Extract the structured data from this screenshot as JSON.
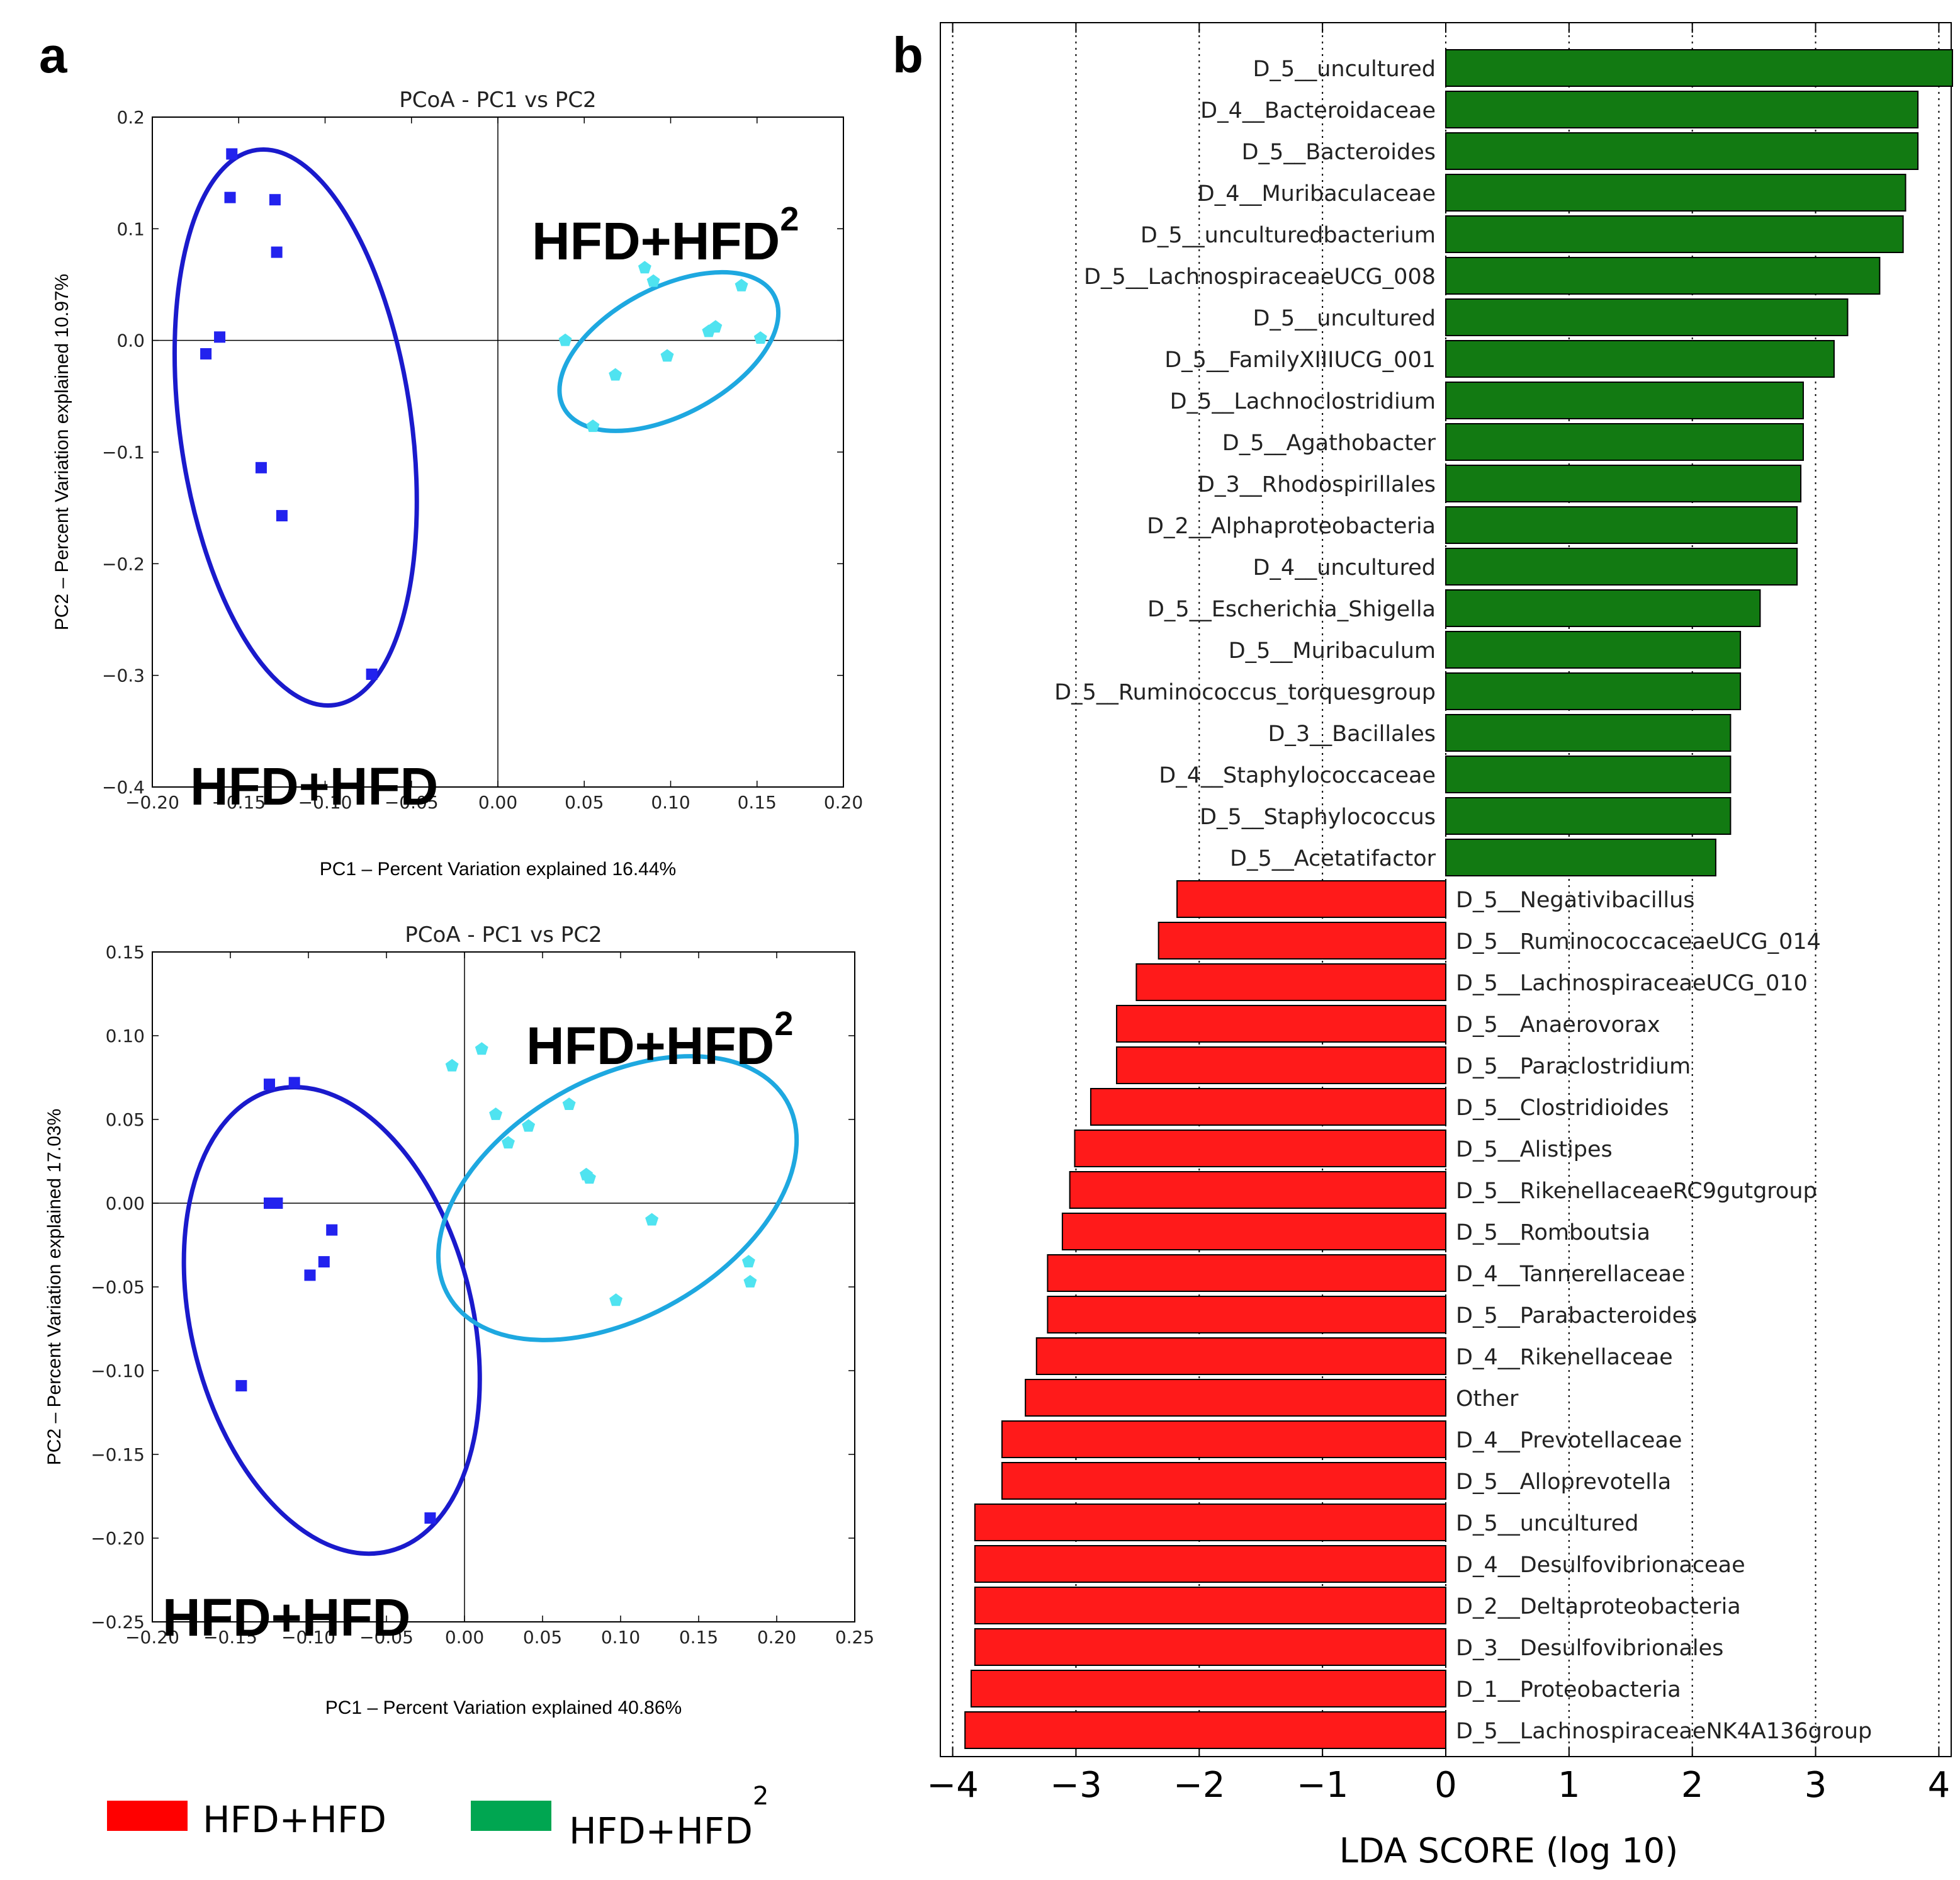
{
  "panels": {
    "a_label": "a",
    "b_label": "b"
  },
  "colors": {
    "group1_ellipse": "#1a1acc",
    "group1_points": "#2222ee",
    "group2_ellipse": "#1ea8e0",
    "group2_points": "#4fe3f0",
    "lda_positive": "#127a12",
    "lda_negative": "#ff1a1a",
    "legend_red": "#ff0000",
    "legend_green": "#00a651"
  },
  "legend": {
    "items": [
      {
        "label": "HFD+HFD",
        "sup": "",
        "color": "#ff0000"
      },
      {
        "label": "HFD+HFD",
        "sup": "2",
        "color": "#00a651"
      }
    ]
  },
  "chart_data": [
    {
      "type": "scatter",
      "title": "PCoA - PC1 vs PC2",
      "xlabel": "PC1 – Percent Variation explained 16.44%",
      "ylabel": "PC2 – Percent Variation explained 10.97%",
      "xlim": [
        -0.2,
        0.2
      ],
      "ylim": [
        -0.4,
        0.2
      ],
      "xticks": [
        -0.2,
        -0.15,
        -0.1,
        -0.05,
        0.0,
        0.05,
        0.1,
        0.15,
        0.2
      ],
      "xtick_labels": [
        "−0.20",
        "−0.15",
        "−0.10",
        "−0.05",
        "0.00",
        "0.05",
        "0.10",
        "0.15",
        "0.20"
      ],
      "yticks": [
        0.2,
        0.1,
        0.0,
        -0.1,
        -0.2,
        -0.3,
        -0.4
      ],
      "ytick_labels": [
        "0.2",
        "0.1",
        "0.0",
        "−0.1",
        "−0.2",
        "−0.3",
        "−0.4"
      ],
      "series": [
        {
          "name": "HFD+HFD",
          "marker": "square",
          "label": "HFD+HFD",
          "label_sup": "",
          "points": [
            [
              -0.154,
              0.167
            ],
            [
              -0.155,
              0.128
            ],
            [
              -0.129,
              0.126
            ],
            [
              -0.128,
              0.079
            ],
            [
              -0.161,
              0.003
            ],
            [
              -0.169,
              -0.012
            ],
            [
              -0.137,
              -0.114
            ],
            [
              -0.125,
              -0.157
            ],
            [
              -0.073,
              -0.299
            ]
          ],
          "ellipse": {
            "cx": -0.117,
            "cy": -0.078,
            "rx": 0.067,
            "ry": 0.251,
            "angle_deg": -8
          }
        },
        {
          "name": "HFD+HFD2",
          "marker": "pentagon",
          "label": "HFD+HFD",
          "label_sup": "2",
          "points": [
            [
              0.085,
              0.065
            ],
            [
              0.09,
              0.053
            ],
            [
              0.141,
              0.049
            ],
            [
              0.122,
              0.008
            ],
            [
              0.126,
              0.012
            ],
            [
              0.152,
              0.002
            ],
            [
              0.039,
              0.0
            ],
            [
              0.098,
              -0.014
            ],
            [
              0.068,
              -0.031
            ],
            [
              0.055,
              -0.077
            ]
          ],
          "ellipse": {
            "cx": 0.099,
            "cy": -0.01,
            "rx": 0.069,
            "ry": 0.057,
            "angle_deg": -28
          }
        }
      ]
    },
    {
      "type": "scatter",
      "title": "PCoA - PC1 vs PC2",
      "xlabel": "PC1 – Percent Variation explained 40.86%",
      "ylabel": "PC2 – Percent Variation explained 17.03%",
      "xlim": [
        -0.2,
        0.25
      ],
      "ylim": [
        -0.25,
        0.15
      ],
      "xticks": [
        -0.2,
        -0.15,
        -0.1,
        -0.05,
        0.0,
        0.05,
        0.1,
        0.15,
        0.2,
        0.25
      ],
      "xtick_labels": [
        "−0.20",
        "−0.15",
        "−0.10",
        "−0.05",
        "0.00",
        "0.05",
        "0.10",
        "0.15",
        "0.20",
        "0.25"
      ],
      "yticks": [
        0.15,
        0.1,
        0.05,
        0.0,
        -0.05,
        -0.1,
        -0.15,
        -0.2,
        -0.25
      ],
      "ytick_labels": [
        "0.15",
        "0.10",
        "0.05",
        "0.00",
        "−0.05",
        "−0.10",
        "−0.15",
        "−0.20",
        "−0.25"
      ],
      "series": [
        {
          "name": "HFD+HFD",
          "marker": "square",
          "label": "HFD+HFD",
          "label_sup": "",
          "points": [
            [
              -0.125,
              0.071
            ],
            [
              -0.109,
              0.072
            ],
            [
              -0.125,
              0.0
            ],
            [
              -0.12,
              0.0
            ],
            [
              -0.085,
              -0.016
            ],
            [
              -0.09,
              -0.035
            ],
            [
              -0.099,
              -0.043
            ],
            [
              -0.143,
              -0.109
            ],
            [
              -0.022,
              -0.188
            ]
          ],
          "ellipse": {
            "cx": -0.085,
            "cy": -0.07,
            "rx": 0.09,
            "ry": 0.142,
            "angle_deg": -14
          }
        },
        {
          "name": "HFD+HFD2",
          "marker": "pentagon",
          "label": "HFD+HFD",
          "label_sup": "2",
          "points": [
            [
              -0.008,
              0.082
            ],
            [
              0.011,
              0.092
            ],
            [
              0.02,
              0.053
            ],
            [
              0.028,
              0.036
            ],
            [
              0.041,
              0.046
            ],
            [
              0.067,
              0.059
            ],
            [
              0.078,
              0.017
            ],
            [
              0.08,
              0.015
            ],
            [
              0.12,
              -0.01
            ],
            [
              0.182,
              -0.035
            ],
            [
              0.183,
              -0.047
            ],
            [
              0.097,
              -0.058
            ]
          ],
          "ellipse": {
            "cx": 0.098,
            "cy": 0.003,
            "rx": 0.125,
            "ry": 0.071,
            "angle_deg": -30
          }
        }
      ]
    },
    {
      "type": "bar",
      "orientation": "horizontal",
      "xlabel": "LDA SCORE (log 10)",
      "xlim": [
        -4.1,
        4.1
      ],
      "xticks": [
        -4,
        -3,
        -2,
        -1,
        0,
        1,
        2,
        3,
        4
      ],
      "xtick_labels": [
        "−4",
        "−3",
        "−2",
        "−1",
        "0",
        "1",
        "2",
        "3",
        "4"
      ],
      "grid": "vertical dotted",
      "categories": [
        "D_5__uncultured",
        "D_4__Bacteroidaceae",
        "D_5__Bacteroides",
        "D_4__Muribaculaceae",
        "D_5__unculturedbacterium",
        "D_5__LachnospiraceaeUCG_008",
        "D_5__uncultured",
        "D_5__FamilyXIIIUCG_001",
        "D_5__Lachnoclostridium",
        "D_5__Agathobacter",
        "D_3__Rhodospirillales",
        "D_2__Alphaproteobacteria",
        "D_4__uncultured",
        "D_5__Escherichia_Shigella",
        "D_5__Muribaculum",
        "D_5__Ruminococcus_torquesgroup",
        "D_3__Bacillales",
        "D_4__Staphylococcaceae",
        "D_5__Staphylococcus",
        "D_5__Acetatifactor",
        "D_5__Negativibacillus",
        "D_5__RuminococcaceaeUCG_014",
        "D_5__LachnospiraceaeUCG_010",
        "D_5__Anaerovorax",
        "D_5__Paraclostridium",
        "D_5__Clostridioides",
        "D_5__Alistipes",
        "D_5__RikenellaceaeRC9gutgroup",
        "D_5__Romboutsia",
        "D_4__Tannerellaceae",
        "D_5__Parabacteroides",
        "D_4__Rikenellaceae",
        "Other",
        "D_4__Prevotellaceae",
        "D_5__Alloprevotella",
        "D_5__uncultured",
        "D_4__Desulfovibrionaceae",
        "D_2__Deltaproteobacteria",
        "D_3__Desulfovibrionales",
        "D_1__Proteobacteria",
        "D_5__LachnospiraceaeNK4A136group"
      ],
      "values": [
        4.11,
        3.83,
        3.83,
        3.73,
        3.71,
        3.52,
        3.26,
        3.15,
        2.9,
        2.9,
        2.88,
        2.85,
        2.85,
        2.55,
        2.39,
        2.39,
        2.31,
        2.31,
        2.31,
        2.19,
        -2.18,
        -2.33,
        -2.51,
        -2.67,
        -2.67,
        -2.88,
        -3.01,
        -3.05,
        -3.11,
        -3.23,
        -3.23,
        -3.32,
        -3.41,
        -3.6,
        -3.6,
        -3.82,
        -3.82,
        -3.82,
        -3.82,
        -3.85,
        -3.9
      ]
    }
  ]
}
